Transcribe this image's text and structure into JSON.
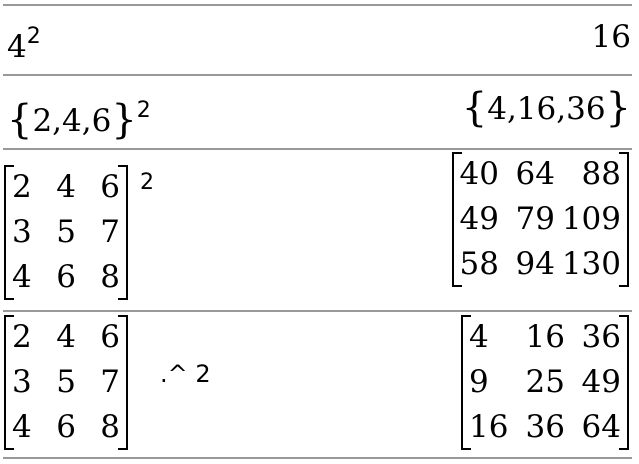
{
  "rows": [
    {
      "input_base": "4",
      "input_exp": "2",
      "output": "16"
    },
    {
      "input_list": "2,4,6",
      "input_exp": "2",
      "output_list": "4,16,36"
    },
    {
      "input_matrix": [
        [
          "2",
          "4",
          "6"
        ],
        [
          "3",
          "5",
          "7"
        ],
        [
          "4",
          "6",
          "8"
        ]
      ],
      "input_exp": "2",
      "output_matrix": [
        [
          "40",
          "64",
          "88"
        ],
        [
          "49",
          "79",
          "109"
        ],
        [
          "58",
          "94",
          "130"
        ]
      ]
    },
    {
      "input_matrix": [
        [
          "2",
          "4",
          "6"
        ],
        [
          "3",
          "5",
          "7"
        ],
        [
          "4",
          "6",
          "8"
        ]
      ],
      "operator": ".^ 2",
      "output_matrix": [
        [
          "4",
          "16",
          "36"
        ],
        [
          "9",
          "25",
          "49"
        ],
        [
          "16",
          "36",
          "64"
        ]
      ]
    }
  ]
}
